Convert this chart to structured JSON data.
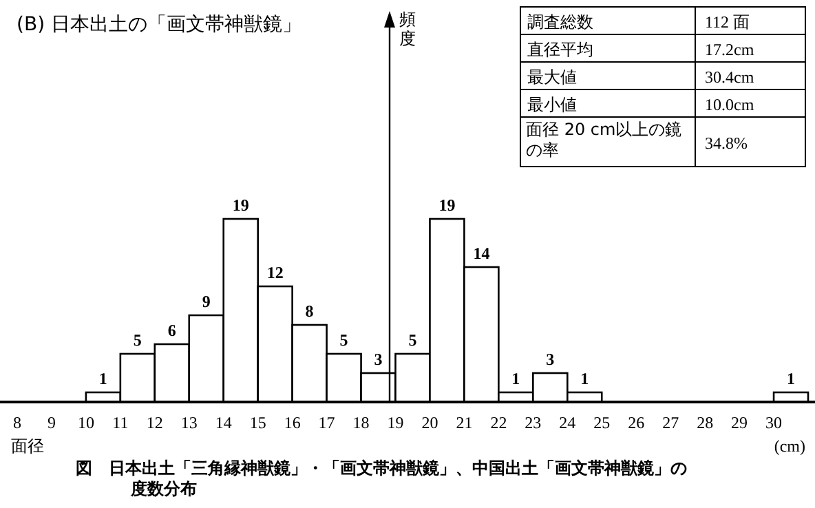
{
  "chart_data": {
    "type": "bar",
    "title": "(B) 日本出土の「画文帯神獣鏡」",
    "xlabel": "(cm)",
    "x": [
      10.5,
      11.5,
      12.5,
      13.5,
      14.5,
      15.5,
      16.5,
      17.5,
      18.5,
      19.5,
      20.5,
      21.5,
      22.5,
      23.5,
      24.5,
      30.5
    ],
    "values": [
      1,
      5,
      6,
      9,
      19,
      12,
      8,
      5,
      3,
      5,
      19,
      14,
      1,
      3,
      1,
      1
    ],
    "data_labels": true,
    "color": "#ffffff",
    "xlim": [
      7.5,
      31.2
    ],
    "xticks": [
      8,
      9,
      10,
      11,
      12,
      13,
      14,
      15,
      16,
      17,
      18,
      19,
      20,
      21,
      22,
      23,
      24,
      25,
      26,
      27,
      28,
      29,
      30
    ],
    "tick_labels": "x",
    "grid": false,
    "legend": false,
    "annotations": [
      "面径",
      "頻度",
      "図　日本出土「三角縁神獣鏡」・「画文帯神獣鏡」、中国出土「画文帯神獣鏡」の度数分布",
      "調査総数",
      "112 面",
      "直径平均",
      "17.2cm",
      "最大値",
      "30.4cm",
      "最小値",
      "10.0cm",
      "面径 20 cm以上の鏡の率",
      "34.8%"
    ]
  }
}
